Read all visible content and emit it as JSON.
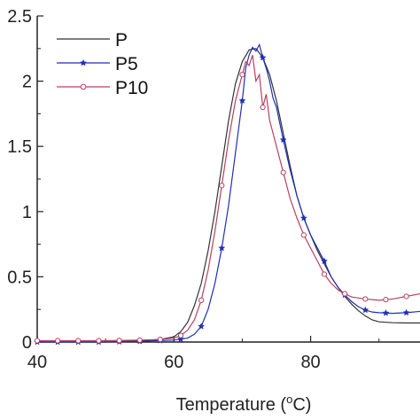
{
  "chart_data": {
    "type": "line",
    "title": "",
    "xlabel": "Temperature (",
    "xlabel_sup": "o",
    "xlabel_unit": "C)",
    "ylabel": "",
    "xlim": [
      40,
      96
    ],
    "ylim": [
      0,
      2.5
    ],
    "xticks": [
      40,
      60,
      80
    ],
    "yticks": [
      0,
      0.5,
      1,
      1.5,
      2,
      2.5
    ],
    "ytick_labels": [
      "0",
      "0.5",
      "1",
      "1.5",
      "2",
      "2.5"
    ],
    "grid": false,
    "legend_position": "top-left",
    "series": [
      {
        "name": "P",
        "color": "#333333",
        "marker": "none",
        "points": [
          [
            40,
            0.0
          ],
          [
            45,
            0.0
          ],
          [
            50,
            0.0
          ],
          [
            55,
            0.01
          ],
          [
            58,
            0.02
          ],
          [
            60,
            0.04
          ],
          [
            61,
            0.08
          ],
          [
            62,
            0.15
          ],
          [
            63,
            0.28
          ],
          [
            64,
            0.45
          ],
          [
            65,
            0.7
          ],
          [
            66,
            1.0
          ],
          [
            67,
            1.35
          ],
          [
            68,
            1.7
          ],
          [
            69,
            1.98
          ],
          [
            70,
            2.15
          ],
          [
            71,
            2.24
          ],
          [
            72,
            2.25
          ],
          [
            73,
            2.18
          ],
          [
            74,
            2.05
          ],
          [
            75,
            1.85
          ],
          [
            76,
            1.6
          ],
          [
            77,
            1.35
          ],
          [
            78,
            1.12
          ],
          [
            79,
            0.95
          ],
          [
            80,
            0.82
          ],
          [
            81,
            0.7
          ],
          [
            82,
            0.6
          ],
          [
            83,
            0.5
          ],
          [
            84,
            0.42
          ],
          [
            85,
            0.35
          ],
          [
            86,
            0.29
          ],
          [
            87,
            0.24
          ],
          [
            88,
            0.2
          ],
          [
            89,
            0.17
          ],
          [
            90,
            0.155
          ],
          [
            92,
            0.148
          ],
          [
            94,
            0.146
          ],
          [
            96,
            0.146
          ]
        ]
      },
      {
        "name": "P5",
        "color": "#1f2fb5",
        "marker": "star",
        "points": [
          [
            40,
            0.0
          ],
          [
            45,
            0.0
          ],
          [
            50,
            0.0
          ],
          [
            55,
            0.005
          ],
          [
            60,
            0.015
          ],
          [
            62,
            0.03
          ],
          [
            63,
            0.06
          ],
          [
            64,
            0.12
          ],
          [
            65,
            0.25
          ],
          [
            66,
            0.45
          ],
          [
            67,
            0.72
          ],
          [
            68,
            1.05
          ],
          [
            69,
            1.45
          ],
          [
            70,
            1.85
          ],
          [
            70.5,
            2.1
          ],
          [
            71,
            2.2
          ],
          [
            71.5,
            2.26
          ],
          [
            72,
            2.23
          ],
          [
            72.5,
            2.28
          ],
          [
            73,
            2.18
          ],
          [
            73.5,
            2.1
          ],
          [
            74,
            2.0
          ],
          [
            74.5,
            1.87
          ],
          [
            75,
            1.8
          ],
          [
            76,
            1.55
          ],
          [
            77,
            1.32
          ],
          [
            78,
            1.12
          ],
          [
            79,
            0.95
          ],
          [
            80,
            0.82
          ],
          [
            81,
            0.72
          ],
          [
            82,
            0.62
          ],
          [
            83,
            0.5
          ],
          [
            84,
            0.42
          ],
          [
            85,
            0.36
          ],
          [
            86,
            0.31
          ],
          [
            87,
            0.27
          ],
          [
            88,
            0.245
          ],
          [
            89,
            0.23
          ],
          [
            90,
            0.225
          ],
          [
            92,
            0.22
          ],
          [
            94,
            0.225
          ],
          [
            96,
            0.235
          ]
        ],
        "marker_x": [
          40,
          43,
          46,
          49,
          52,
          55,
          58,
          61,
          64,
          67,
          70,
          73,
          76,
          79,
          82,
          85,
          88,
          91,
          94
        ]
      },
      {
        "name": "P10",
        "color": "#b8405e",
        "marker": "circle",
        "points": [
          [
            40,
            0.01
          ],
          [
            45,
            0.01
          ],
          [
            50,
            0.01
          ],
          [
            55,
            0.015
          ],
          [
            58,
            0.02
          ],
          [
            60,
            0.03
          ],
          [
            61,
            0.05
          ],
          [
            62,
            0.09
          ],
          [
            63,
            0.17
          ],
          [
            64,
            0.32
          ],
          [
            65,
            0.55
          ],
          [
            66,
            0.85
          ],
          [
            67,
            1.2
          ],
          [
            68,
            1.55
          ],
          [
            69,
            1.85
          ],
          [
            70,
            2.05
          ],
          [
            70.5,
            2.15
          ],
          [
            71,
            2.12
          ],
          [
            71.5,
            2.2
          ],
          [
            72,
            2.0
          ],
          [
            72.5,
            2.05
          ],
          [
            73,
            1.8
          ],
          [
            73.5,
            1.9
          ],
          [
            74,
            1.7
          ],
          [
            74.5,
            1.6
          ],
          [
            75,
            1.5
          ],
          [
            76,
            1.3
          ],
          [
            77,
            1.1
          ],
          [
            78,
            0.95
          ],
          [
            79,
            0.82
          ],
          [
            80,
            0.72
          ],
          [
            81,
            0.62
          ],
          [
            82,
            0.52
          ],
          [
            83,
            0.45
          ],
          [
            84,
            0.4
          ],
          [
            85,
            0.37
          ],
          [
            86,
            0.345
          ],
          [
            88,
            0.33
          ],
          [
            90,
            0.32
          ],
          [
            92,
            0.33
          ],
          [
            94,
            0.35
          ],
          [
            96,
            0.37
          ]
        ],
        "marker_x": [
          40,
          43,
          46,
          49,
          52,
          55,
          58,
          61,
          64,
          67,
          70,
          73,
          76,
          79,
          82,
          85,
          88,
          91,
          94
        ]
      }
    ]
  }
}
